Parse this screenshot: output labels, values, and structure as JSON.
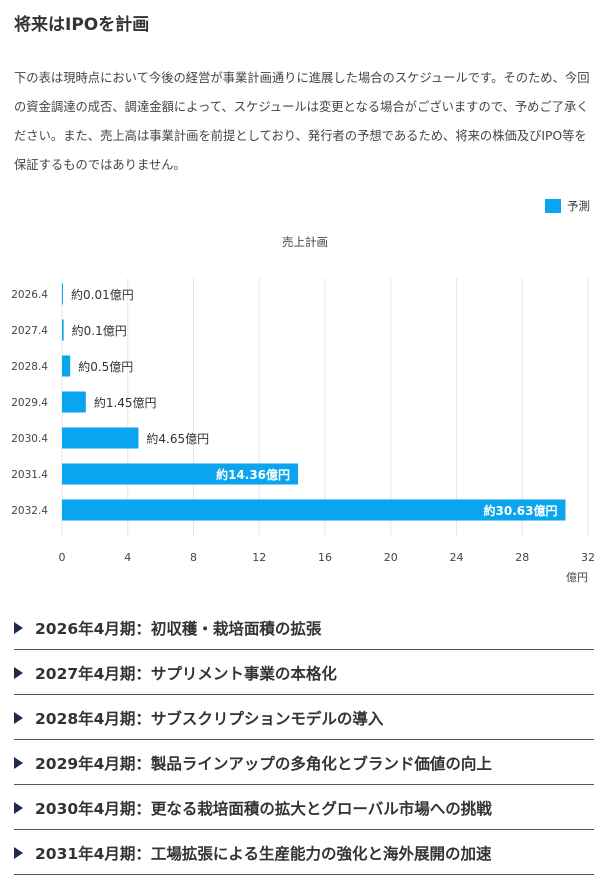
{
  "page": {
    "title": "将来はIPOを計画",
    "intro": "下の表は現時点において今後の経営が事業計画通りに進展した場合のスケジュールです。そのため、今回の資金調達の成否、調達金額によって、スケジュールは変更となる場合がございますので、予めご了承ください。また、売上高は事業計画を前提としており、発行者の予想であるため、将来の株価及びIPO等を保証するものではありません。"
  },
  "legend": {
    "label": "予測",
    "color": "#0aa5ee"
  },
  "chart_data": {
    "type": "bar",
    "orientation": "horizontal",
    "title": "売上計画",
    "categories": [
      "2026.4",
      "2027.4",
      "2028.4",
      "2029.4",
      "2030.4",
      "2031.4",
      "2032.4"
    ],
    "values": [
      0.01,
      0.1,
      0.5,
      1.45,
      4.65,
      14.36,
      30.63
    ],
    "data_labels": [
      "約0.01億円",
      "約0.1億円",
      "約0.5億円",
      "約1.45億円",
      "約4.65億円",
      "約14.36億円",
      "約30.63億円"
    ],
    "series": [
      {
        "name": "予測",
        "values": [
          0.01,
          0.1,
          0.5,
          1.45,
          4.65,
          14.36,
          30.63
        ]
      }
    ],
    "xlim": [
      0,
      32
    ],
    "xticks": [
      0,
      4,
      8,
      12,
      16,
      20,
      24,
      28,
      32
    ],
    "xlabel": "億円",
    "ylabel": "",
    "grid": true,
    "legend_position": "top-right",
    "bar_color": "#0aa5ee"
  },
  "milestones": [
    {
      "label": "2026年4月期：初収穫・栽培面積の拡張"
    },
    {
      "label": "2027年4月期：サプリメント事業の本格化"
    },
    {
      "label": "2028年4月期：サブスクリプションモデルの導入"
    },
    {
      "label": "2029年4月期：製品ラインアップの多角化とブランド価値の向上"
    },
    {
      "label": "2030年4月期：更なる栽培面積の拡大とグローバル市場への挑戦"
    },
    {
      "label": "2031年4月期：工場拡張による生産能力の強化と海外展開の加速"
    }
  ]
}
